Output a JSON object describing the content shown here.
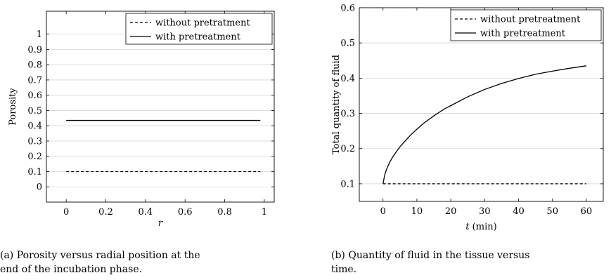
{
  "chart_data": [
    {
      "type": "line",
      "title": "",
      "xlabel": "r",
      "ylabel": "Porosity",
      "xlim": [
        -0.1,
        1.05
      ],
      "ylim": [
        -0.1,
        1.15
      ],
      "x_ticks": [
        0,
        0.2,
        0.4,
        0.6,
        0.8,
        1
      ],
      "x_tick_labels": [
        "0",
        "0.2",
        "0.4",
        "0.6",
        "0.8",
        "1"
      ],
      "y_ticks": [
        0,
        0.1,
        0.2,
        0.3,
        0.4,
        0.5,
        0.6,
        0.7,
        0.8,
        0.9,
        1
      ],
      "y_tick_labels": [
        "0",
        "0.1",
        "0.2",
        "0.3",
        "0.4",
        "0.5",
        "0.6",
        "0.7",
        "0.8",
        "0.9",
        "1"
      ],
      "grid": "horizontal",
      "legend_position": "top-right",
      "series": [
        {
          "name": "without pretratment",
          "style": "dashed",
          "x": [
            0,
            0.98
          ],
          "y": [
            0.1,
            0.1
          ]
        },
        {
          "name": "with pretreatment",
          "style": "solid",
          "x": [
            0,
            0.98
          ],
          "y": [
            0.435,
            0.435
          ]
        }
      ],
      "caption": "(a) Porosity versus radial position at the end of the incubation phase.",
      "caption_lines": [
        "(a) Porosity versus radial position at the",
        "end of the incubation phase."
      ]
    },
    {
      "type": "line",
      "title": "",
      "xlabel": "t (min)",
      "xlabel_var": "t",
      "xlabel_unit": "(min)",
      "ylabel": "Total quantity of fluid",
      "xlim": [
        -7,
        65
      ],
      "ylim": [
        0.05,
        0.6
      ],
      "x_ticks": [
        0,
        10,
        20,
        30,
        40,
        50,
        60
      ],
      "x_tick_labels": [
        "0",
        "10",
        "20",
        "30",
        "40",
        "50",
        "60"
      ],
      "y_ticks": [
        0.1,
        0.2,
        0.3,
        0.4,
        0.5,
        0.6
      ],
      "y_tick_labels": [
        "0.1",
        "0.2",
        "0.3",
        "0.4",
        "0.5",
        "0.6"
      ],
      "grid": "horizontal",
      "legend_position": "top-right",
      "series": [
        {
          "name": "without pretreatment",
          "style": "dashed",
          "x": [
            0,
            60
          ],
          "y": [
            0.1,
            0.1
          ]
        },
        {
          "name": "with pretreatment",
          "style": "solid",
          "x": [
            0,
            0.5,
            1,
            2,
            3,
            4,
            5,
            6,
            8,
            10,
            12,
            15,
            18,
            20,
            25,
            30,
            35,
            40,
            45,
            50,
            55,
            60
          ],
          "y": [
            0.1,
            0.125,
            0.14,
            0.162,
            0.178,
            0.192,
            0.205,
            0.216,
            0.237,
            0.255,
            0.272,
            0.293,
            0.312,
            0.322,
            0.347,
            0.368,
            0.385,
            0.399,
            0.411,
            0.42,
            0.428,
            0.435
          ]
        }
      ],
      "caption": "(b) Quantity of fluid in the tissue versus time.",
      "caption_lines": [
        "(b) Quantity of fluid in the tissue versus",
        "time."
      ]
    }
  ]
}
